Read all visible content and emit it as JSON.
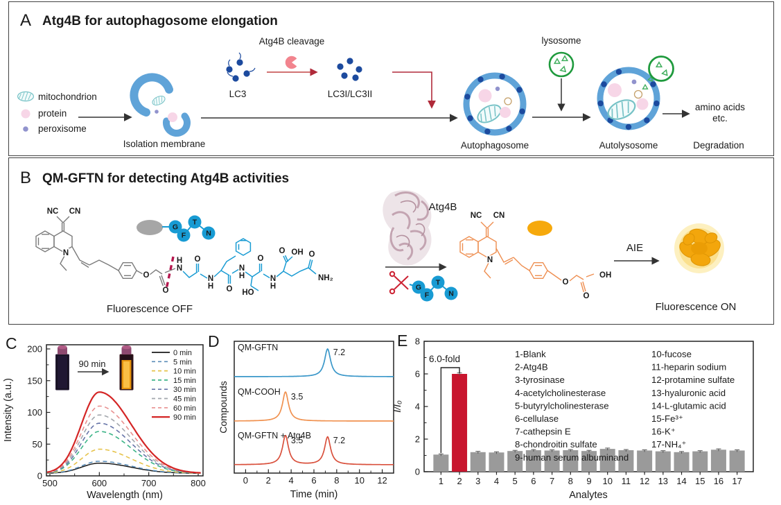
{
  "figure": {
    "panelA": {
      "label": "A",
      "title": "Atg4B for autophagosome elongation",
      "legend": {
        "mitochondrion": "mitochondrion",
        "protein": "protein",
        "peroxisome": "peroxisome"
      },
      "isolation_membrane": "Isolation membrane",
      "lc3": "LC3",
      "atg4b_cleavage": "Atg4B cleavage",
      "lc3i_lc3ii": "LC3I/LC3II",
      "autophagosome": "Autophagosome",
      "lysosome": "lysosome",
      "autolysosome": "Autolysosome",
      "amino_acids": "amino acids",
      "etc": "etc.",
      "degradation": "Degradation"
    },
    "panelB": {
      "label": "B",
      "title": "QM-GFTN for detecting Atg4B activities",
      "fluorescence_off": "Fluorescence OFF",
      "fluorescence_on": "Fluorescence ON",
      "enzyme": "Atg4B",
      "aie": "AIE",
      "beads": [
        "G",
        "F",
        "T",
        "N"
      ],
      "atoms": {
        "nc": "NC",
        "cn": "CN",
        "n": "N",
        "h": "H",
        "o": "O",
        "oh": "OH",
        "ho": "HO",
        "nh2": "NH₂"
      }
    },
    "panelC": {
      "label": "C"
    },
    "panelD": {
      "label": "D"
    },
    "panelE": {
      "label": "E"
    }
  },
  "chart_data": [
    {
      "panel": "C",
      "type": "line",
      "xlabel": "Wavelength (nm)",
      "ylabel": "Intensity (a.u.)",
      "xlim": [
        500,
        800
      ],
      "ylim": [
        0,
        200
      ],
      "xticks": [
        500,
        600,
        700,
        800
      ],
      "yticks": [
        0,
        50,
        100,
        150,
        200
      ],
      "peak_nm": 600,
      "baseline": 4,
      "series": [
        {
          "name": "0 min",
          "peak": 20,
          "color": "#1a1a1a",
          "style": "solid"
        },
        {
          "name": "5 min",
          "peak": 23,
          "color": "#5b8db8",
          "style": "dashed"
        },
        {
          "name": "10 min",
          "peak": 42,
          "color": "#e6c34a",
          "style": "dashed"
        },
        {
          "name": "15 min",
          "peak": 70,
          "color": "#3cb487",
          "style": "dashed"
        },
        {
          "name": "30 min",
          "peak": 83,
          "color": "#6674a8",
          "style": "dashed"
        },
        {
          "name": "45 min",
          "peak": 96,
          "color": "#a3a7ad",
          "style": "dashed"
        },
        {
          "name": "60 min",
          "peak": 110,
          "color": "#e89090",
          "style": "dashed"
        },
        {
          "name": "90 min",
          "peak": 132,
          "color": "#d42525",
          "style": "solid"
        }
      ],
      "legend_position": "upper right",
      "inset_label": "90 min"
    },
    {
      "panel": "D",
      "type": "line",
      "xlabel": "Time (min)",
      "ylabel": "Compounds",
      "xlim": [
        -1,
        13
      ],
      "xticks": [
        0,
        2,
        4,
        6,
        8,
        10,
        12
      ],
      "traces": [
        {
          "name": "QM-GFTN",
          "color": "#3a97c9",
          "peaks": [
            7.2
          ],
          "peak_labels": [
            "7.2"
          ]
        },
        {
          "name": "QM-COOH",
          "color": "#f0914f",
          "peaks": [
            3.5
          ],
          "peak_labels": [
            "3.5"
          ]
        },
        {
          "name": "QM-GFTN + Atg4B",
          "color": "#d9503c",
          "peaks": [
            3.5,
            7.2
          ],
          "peak_labels": [
            "3.5",
            "7.2"
          ]
        }
      ]
    },
    {
      "panel": "E",
      "type": "bar",
      "xlabel": "Analytes",
      "ylabel": "I/I₀",
      "ylim": [
        0,
        8
      ],
      "yticks": [
        0,
        2,
        4,
        6,
        8
      ],
      "categories": [
        "1",
        "2",
        "3",
        "4",
        "5",
        "6",
        "7",
        "8",
        "9",
        "10",
        "11",
        "12",
        "13",
        "14",
        "15",
        "16",
        "17"
      ],
      "values": [
        1.05,
        6.0,
        1.2,
        1.18,
        1.27,
        1.32,
        1.3,
        1.32,
        1.27,
        1.4,
        1.32,
        1.3,
        1.25,
        1.2,
        1.25,
        1.35,
        1.3
      ],
      "errors": [
        0.04,
        0.06,
        0.05,
        0.04,
        0.04,
        0.04,
        0.04,
        0.04,
        0.04,
        0.05,
        0.04,
        0.04,
        0.04,
        0.04,
        0.04,
        0.05,
        0.04
      ],
      "bar_color": "#9a9a9a",
      "highlight_index": 1,
      "highlight_color": "#c8152e",
      "annotation": {
        "text": "6.0-fold",
        "color": "#c0303e"
      },
      "analyte_legend_left": [
        "1-Blank",
        "2-Atg4B",
        "3-tyrosinase",
        "4-acetylcholinesterase",
        "5-butyrylcholinesterase",
        "6-cellulase",
        "7-cathepsin E",
        "8-chondroitin sulfate",
        "9-human serum albuminand"
      ],
      "analyte_legend_right": [
        "10-fucose",
        "11-heparin sodium",
        "12-protamine sulfate",
        "13-hyaluronic acid",
        "14-L-glutamic acid",
        "15-Fe³⁺",
        "16-K⁺",
        "17-NH₄⁺"
      ]
    }
  ]
}
